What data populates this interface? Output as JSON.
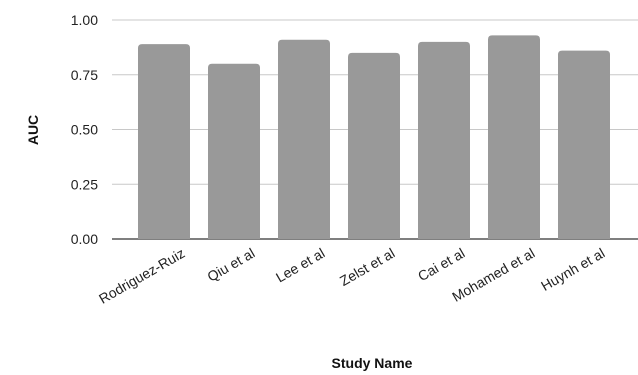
{
  "chart_data": {
    "type": "bar",
    "title": "",
    "xlabel": "Study Name",
    "ylabel": "AUC",
    "categories": [
      "Rodriguez-Ruiz",
      "Qiu et al",
      "Lee et al",
      "Zelst et al",
      "Cai et al",
      "Mohamed et al",
      "Huynh et al"
    ],
    "values": [
      0.89,
      0.8,
      0.91,
      0.85,
      0.9,
      0.93,
      0.86
    ],
    "ylim": [
      0,
      1.0
    ],
    "yticks": [
      "0.00",
      "0.25",
      "0.50",
      "0.75",
      "1.00"
    ],
    "grid": true,
    "legend": "none",
    "bar_color": "#999999",
    "grid_color": "#c8c8c8",
    "axis_color": "#333333"
  }
}
